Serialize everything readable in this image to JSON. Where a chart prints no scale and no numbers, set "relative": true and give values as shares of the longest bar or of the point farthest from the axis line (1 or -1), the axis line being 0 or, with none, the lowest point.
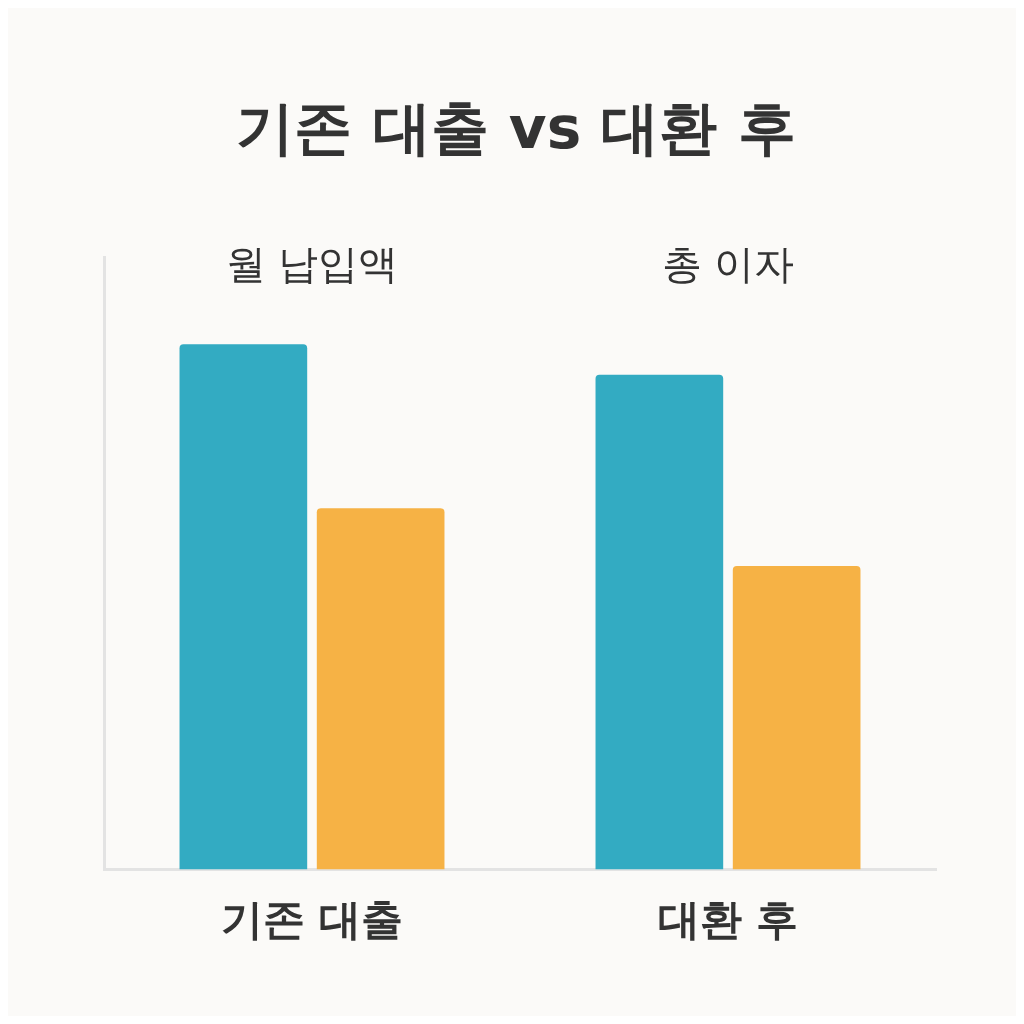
{
  "chart_data": {
    "type": "bar",
    "title": "기존 대출 vs 대환 후",
    "categories": [
      "기존 대출",
      "대환 후"
    ],
    "relative": true,
    "annotations": [
      "월 납입액",
      "총 이자"
    ],
    "series": [
      {
        "color": "#33abc2",
        "values": [
          1,
          0.942
        ]
      },
      {
        "color": "#f6b245",
        "values": [
          0.688,
          0.578
        ]
      }
    ],
    "grid": false,
    "legend": false
  }
}
